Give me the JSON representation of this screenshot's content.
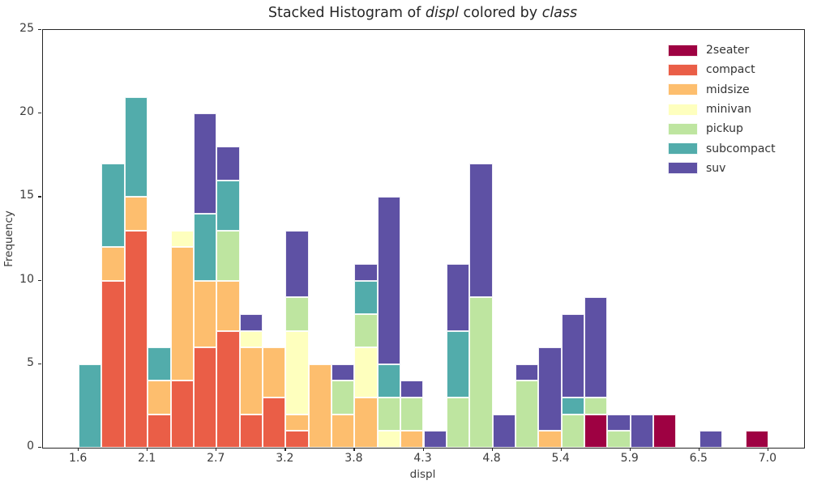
{
  "title": {
    "prefix": "Stacked Histogram of ",
    "var1": "displ",
    "middle": " colored by ",
    "var2": "class"
  },
  "chart_data": {
    "type": "bar",
    "stacked": true,
    "title": "Stacked Histogram of displ colored by class",
    "xlabel": "displ",
    "ylabel": "Frequency",
    "xlim": [
      1.32,
      7.28
    ],
    "ylim": [
      0,
      25
    ],
    "grid": false,
    "legend_position": "upper right",
    "bin_start": 1.6,
    "bin_width": 0.18,
    "n_bins": 30,
    "xtick_values": [
      1.6,
      2.14,
      2.68,
      3.22,
      3.76,
      4.3,
      4.84,
      5.38,
      5.92,
      6.46,
      7.0
    ],
    "xtick_labels": [
      "1.6",
      "2.1",
      "2.7",
      "3.2",
      "3.8",
      "4.3",
      "4.8",
      "5.4",
      "5.9",
      "6.5",
      "7.0"
    ],
    "ytick_values": [
      0,
      5,
      10,
      15,
      20,
      25
    ],
    "series": [
      {
        "name": "2seater",
        "color": "#9e0142",
        "values": [
          0,
          0,
          0,
          0,
          0,
          0,
          0,
          0,
          0,
          0,
          0,
          0,
          0,
          0,
          0,
          0,
          0,
          0,
          0,
          0,
          0,
          0,
          2,
          0,
          0,
          2,
          0,
          0,
          0,
          1
        ]
      },
      {
        "name": "compact",
        "color": "#ea5e47",
        "values": [
          0,
          10,
          13,
          2,
          4,
          6,
          7,
          2,
          3,
          1,
          0,
          0,
          0,
          0,
          0,
          0,
          0,
          0,
          0,
          0,
          0,
          0,
          0,
          0,
          0,
          0,
          0,
          0,
          0,
          0
        ]
      },
      {
        "name": "midsize",
        "color": "#fdbe6e",
        "values": [
          0,
          2,
          2,
          2,
          8,
          4,
          3,
          4,
          3,
          1,
          5,
          2,
          3,
          0,
          1,
          0,
          0,
          0,
          0,
          0,
          1,
          0,
          0,
          0,
          0,
          0,
          0,
          0,
          0,
          0
        ]
      },
      {
        "name": "minivan",
        "color": "#feffbe",
        "values": [
          0,
          0,
          0,
          0,
          1,
          0,
          0,
          1,
          0,
          5,
          0,
          0,
          3,
          1,
          0,
          0,
          0,
          0,
          0,
          0,
          0,
          0,
          0,
          0,
          0,
          0,
          0,
          0,
          0,
          0
        ]
      },
      {
        "name": "pickup",
        "color": "#bee5a0",
        "values": [
          0,
          0,
          0,
          0,
          0,
          0,
          3,
          0,
          0,
          2,
          0,
          2,
          2,
          2,
          2,
          0,
          3,
          9,
          0,
          4,
          0,
          2,
          1,
          1,
          0,
          0,
          0,
          0,
          0,
          0
        ]
      },
      {
        "name": "subcompact",
        "color": "#52acab",
        "values": [
          5,
          5,
          6,
          2,
          0,
          4,
          3,
          0,
          0,
          0,
          0,
          0,
          2,
          2,
          0,
          0,
          4,
          0,
          0,
          0,
          0,
          1,
          0,
          0,
          0,
          0,
          0,
          0,
          0,
          0
        ]
      },
      {
        "name": "suv",
        "color": "#5e51a4",
        "values": [
          0,
          0,
          0,
          0,
          0,
          6,
          2,
          1,
          0,
          4,
          0,
          1,
          1,
          10,
          1,
          1,
          4,
          8,
          2,
          1,
          5,
          5,
          6,
          1,
          2,
          0,
          0,
          1,
          0,
          0
        ]
      }
    ],
    "legend_labels": [
      "2seater",
      "compact",
      "midsize",
      "minivan",
      "pickup",
      "subcompact",
      "suv"
    ]
  }
}
